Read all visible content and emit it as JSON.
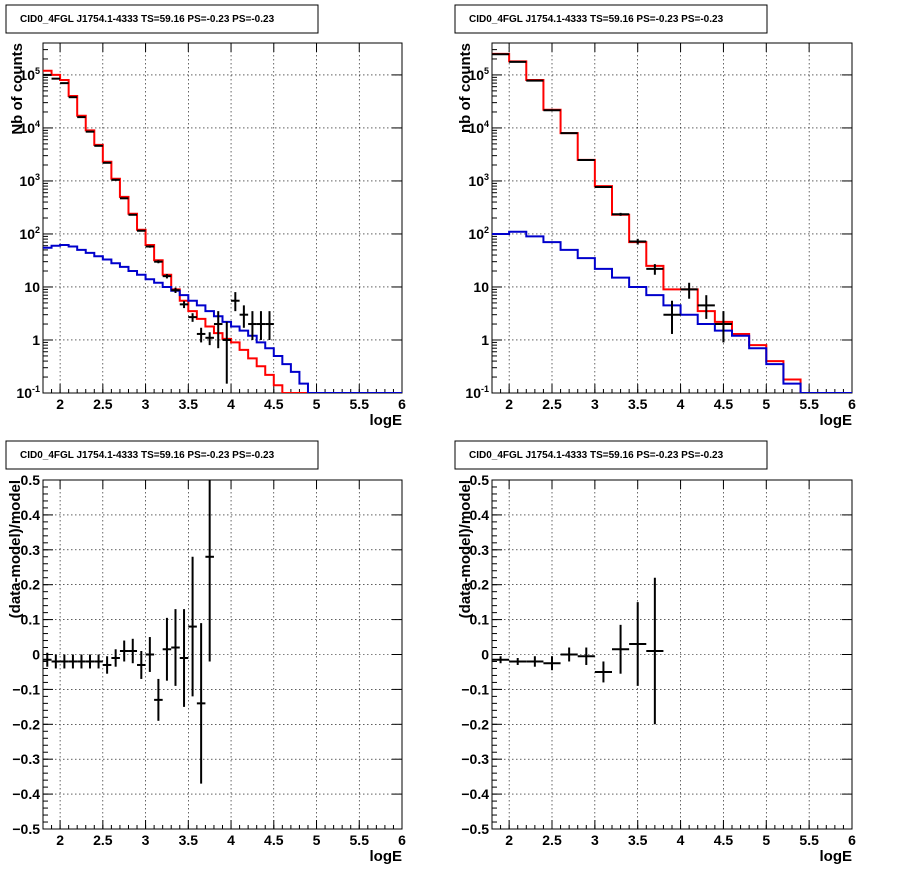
{
  "colors": {
    "data": "#000000",
    "total_model": "#ff0000",
    "background_model": "#0000cc"
  },
  "chart_data": [
    {
      "id": "p1",
      "type": "line",
      "title": "CID0_4FGL J1754.1-4333 TS=59.16 PS=-0.23 PS=-0.23",
      "xlabel": "logE",
      "ylabel": "Nb of counts",
      "xlim": [
        1.8,
        6
      ],
      "ylim": [
        0.1,
        400000
      ],
      "yscale": "log",
      "grid": true,
      "xticks": [
        "2",
        "2.5",
        "3",
        "3.5",
        "4",
        "4.5",
        "5",
        "5.5",
        "6"
      ],
      "yticks": [
        "10^-1",
        "1",
        "10",
        "10^2",
        "10^3",
        "10^4",
        "10^5"
      ],
      "series": [
        {
          "kind": "step",
          "color": "red",
          "edges": [
            1.8,
            1.9,
            2.0,
            2.1,
            2.2,
            2.3,
            2.4,
            2.5,
            2.6,
            2.7,
            2.8,
            2.9,
            3.0,
            3.1,
            3.2,
            3.3,
            3.4,
            3.5,
            3.6,
            3.7,
            3.8,
            3.9,
            4.0,
            4.1,
            4.2,
            4.3,
            4.4,
            4.5,
            4.6,
            4.7,
            4.8,
            4.9,
            5.0,
            5.1,
            5.2,
            5.3,
            5.4,
            5.5,
            5.6,
            5.7,
            5.8,
            5.9,
            6.0
          ],
          "values": [
            120000,
            100000,
            80000,
            40000,
            17000,
            9000,
            4800,
            2300,
            1100,
            500,
            240,
            120,
            62,
            32,
            17,
            9,
            5.5,
            3.5,
            2.5,
            1.8,
            1.35,
            1.05,
            0.9,
            0.65,
            0.45,
            0.32,
            0.22,
            0.14,
            0.1,
            0.1,
            0.1,
            0.1,
            0.1,
            0.1,
            0.1,
            0.1,
            0.1,
            0.1,
            0.1,
            0.1,
            0.1,
            0.1
          ]
        },
        {
          "kind": "step",
          "color": "blue",
          "edges": [
            1.8,
            1.9,
            2.0,
            2.1,
            2.2,
            2.3,
            2.4,
            2.5,
            2.6,
            2.7,
            2.8,
            2.9,
            3.0,
            3.1,
            3.2,
            3.3,
            3.4,
            3.5,
            3.6,
            3.7,
            3.8,
            3.9,
            4.0,
            4.1,
            4.2,
            4.3,
            4.4,
            4.5,
            4.6,
            4.7,
            4.8,
            4.9,
            5.0,
            5.1,
            5.2,
            5.3,
            5.4,
            5.5,
            5.6,
            5.7,
            5.8,
            5.9,
            6.0
          ],
          "values": [
            55,
            60,
            62,
            58,
            50,
            44,
            38,
            33,
            28,
            24,
            20,
            17,
            14,
            12,
            10,
            8.5,
            7,
            5.5,
            4.5,
            3.5,
            2.8,
            2.2,
            1.8,
            1.5,
            1.2,
            0.9,
            0.7,
            0.5,
            0.35,
            0.25,
            0.15,
            0.1,
            0.1,
            0.1,
            0.1,
            0.1,
            0.1,
            0.1,
            0.1,
            0.1,
            0.1,
            0.1
          ]
        },
        {
          "kind": "points",
          "color": "black",
          "x": [
            1.85,
            1.95,
            2.05,
            2.15,
            2.25,
            2.35,
            2.45,
            2.55,
            2.65,
            2.75,
            2.85,
            2.95,
            3.05,
            3.15,
            3.25,
            3.35,
            3.45,
            3.55,
            3.65,
            3.75,
            3.85,
            3.95,
            4.05,
            4.15,
            4.25,
            4.35,
            4.45
          ],
          "y": [
            100000,
            85000,
            70000,
            38000,
            16000,
            8500,
            4600,
            2200,
            1050,
            470,
            230,
            115,
            58,
            30,
            16,
            8.7,
            4.7,
            2.7,
            1.3,
            1.1,
            2,
            1,
            5.5,
            3,
            2,
            2,
            2
          ],
          "ylo": [
            98000,
            83000,
            68500,
            37000,
            15800,
            8400,
            4550,
            2150,
            1030,
            460,
            225,
            112,
            55,
            28,
            14.5,
            7.7,
            4,
            2.2,
            0.9,
            0.8,
            0.7,
            0.15,
            3.5,
            1.7,
            1,
            1,
            1
          ],
          "yhi": [
            102000,
            87000,
            71500,
            39000,
            16200,
            8600,
            4650,
            2250,
            1070,
            480,
            235,
            118,
            61,
            32,
            17.5,
            9.7,
            5.4,
            3.2,
            1.7,
            1.4,
            3.5,
            2.2,
            8,
            4.5,
            3.5,
            3.5,
            3.5
          ],
          "xerr": 0.05
        }
      ]
    },
    {
      "id": "p2",
      "type": "line",
      "title": "CID0_4FGL J1754.1-4333 TS=59.16 PS=-0.23 PS=-0.23",
      "xlabel": "logE",
      "ylabel": "nb of counts",
      "xlim": [
        1.8,
        6
      ],
      "ylim": [
        0.1,
        400000
      ],
      "yscale": "log",
      "grid": true,
      "xticks": [
        "2",
        "2.5",
        "3",
        "3.5",
        "4",
        "4.5",
        "5",
        "5.5",
        "6"
      ],
      "yticks": [
        "10^-1",
        "1",
        "10",
        "10^2",
        "10^3",
        "10^4",
        "10^5"
      ],
      "series": [
        {
          "kind": "step",
          "color": "red",
          "edges": [
            1.8,
            2.0,
            2.2,
            2.4,
            2.6,
            2.8,
            3.0,
            3.2,
            3.4,
            3.6,
            3.8,
            4.0,
            4.2,
            4.4,
            4.6,
            4.8,
            5.0,
            5.2,
            5.4,
            5.6,
            5.8,
            6.0
          ],
          "values": [
            250000,
            180000,
            80000,
            22000,
            8000,
            2500,
            800,
            230,
            70,
            25,
            9,
            9,
            3.5,
            2.2,
            1.3,
            0.8,
            0.4,
            0.18,
            0.1,
            0.1,
            0.1
          ]
        },
        {
          "kind": "step",
          "color": "blue",
          "edges": [
            1.8,
            2.0,
            2.2,
            2.4,
            2.6,
            2.8,
            3.0,
            3.2,
            3.4,
            3.6,
            3.8,
            4.0,
            4.2,
            4.4,
            4.6,
            4.8,
            5.0,
            5.2,
            5.4,
            5.6,
            5.8,
            6.0
          ],
          "values": [
            100,
            110,
            90,
            70,
            50,
            35,
            22,
            15,
            10,
            7,
            4.5,
            3,
            2,
            1.5,
            1.2,
            0.7,
            0.35,
            0.15,
            0.1,
            0.1,
            0.1
          ]
        },
        {
          "kind": "points",
          "color": "black",
          "x": [
            1.9,
            2.1,
            2.3,
            2.5,
            2.7,
            2.9,
            3.1,
            3.3,
            3.5,
            3.7,
            3.9,
            4.1,
            4.3,
            4.5
          ],
          "y": [
            245000,
            176000,
            78000,
            21500,
            8000,
            2480,
            770,
            235,
            72,
            22,
            3,
            9,
            4.5,
            2
          ],
          "ylo": [
            242000,
            174000,
            77000,
            21200,
            7900,
            2430,
            740,
            220,
            63,
            17,
            1.3,
            6,
            2.5,
            0.9
          ],
          "yhi": [
            248000,
            178000,
            79000,
            21800,
            8100,
            2530,
            800,
            250,
            81,
            27,
            5.5,
            12,
            7,
            3.5
          ],
          "xerr": 0.1
        }
      ]
    },
    {
      "id": "p3",
      "type": "scatter",
      "title": "CID0_4FGL J1754.1-4333 TS=59.16 PS=-0.23 PS=-0.23",
      "xlabel": "logE",
      "ylabel": "(data-model)/model",
      "xlim": [
        1.8,
        6
      ],
      "ylim": [
        -0.5,
        0.5
      ],
      "yscale": "linear",
      "grid": true,
      "xticks": [
        "2",
        "2.5",
        "3",
        "3.5",
        "4",
        "4.5",
        "5",
        "5.5",
        "6"
      ],
      "yticks": [
        "-0.5",
        "-0.4",
        "-0.3",
        "-0.2",
        "-0.1",
        "0",
        "0.1",
        "0.2",
        "0.3",
        "0.4",
        "0.5"
      ],
      "series": [
        {
          "kind": "points",
          "color": "black",
          "x": [
            1.85,
            1.95,
            2.05,
            2.15,
            2.25,
            2.35,
            2.45,
            2.55,
            2.65,
            2.75,
            2.85,
            2.95,
            3.05,
            3.15,
            3.25,
            3.35,
            3.45,
            3.55,
            3.65,
            3.75
          ],
          "y": [
            -0.015,
            -0.02,
            -0.02,
            -0.02,
            -0.02,
            -0.02,
            -0.02,
            -0.03,
            -0.01,
            0.01,
            0.01,
            -0.03,
            0.0,
            -0.13,
            0.015,
            0.02,
            -0.01,
            0.08,
            -0.14,
            0.28
          ],
          "yerr": [
            0.02,
            0.02,
            0.02,
            0.02,
            0.02,
            0.02,
            0.02,
            0.025,
            0.025,
            0.03,
            0.035,
            0.04,
            0.05,
            0.06,
            0.09,
            0.11,
            0.14,
            0.2,
            0.23,
            0.3
          ],
          "xerr": 0.05
        }
      ]
    },
    {
      "id": "p4",
      "type": "scatter",
      "title": "CID0_4FGL J1754.1-4333 TS=59.16 PS=-0.23 PS=-0.23",
      "xlabel": "logE",
      "ylabel": "(data-model)/model",
      "xlim": [
        1.8,
        6
      ],
      "ylim": [
        -0.5,
        0.5
      ],
      "yscale": "linear",
      "grid": true,
      "xticks": [
        "2",
        "2.5",
        "3",
        "3.5",
        "4",
        "4.5",
        "5",
        "5.5",
        "6"
      ],
      "yticks": [
        "-0.5",
        "-0.4",
        "-0.3",
        "-0.2",
        "-0.1",
        "0",
        "0.1",
        "0.2",
        "0.3",
        "0.4",
        "0.5"
      ],
      "series": [
        {
          "kind": "points",
          "color": "black",
          "x": [
            1.9,
            2.1,
            2.3,
            2.5,
            2.7,
            2.9,
            3.1,
            3.3,
            3.5,
            3.7
          ],
          "y": [
            -0.015,
            -0.02,
            -0.02,
            -0.025,
            0.0,
            -0.005,
            -0.05,
            0.015,
            0.03,
            0.01
          ],
          "yerr": [
            0.01,
            0.01,
            0.015,
            0.02,
            0.02,
            0.025,
            0.03,
            0.07,
            0.12,
            0.21
          ],
          "xerr": 0.1
        }
      ]
    }
  ]
}
